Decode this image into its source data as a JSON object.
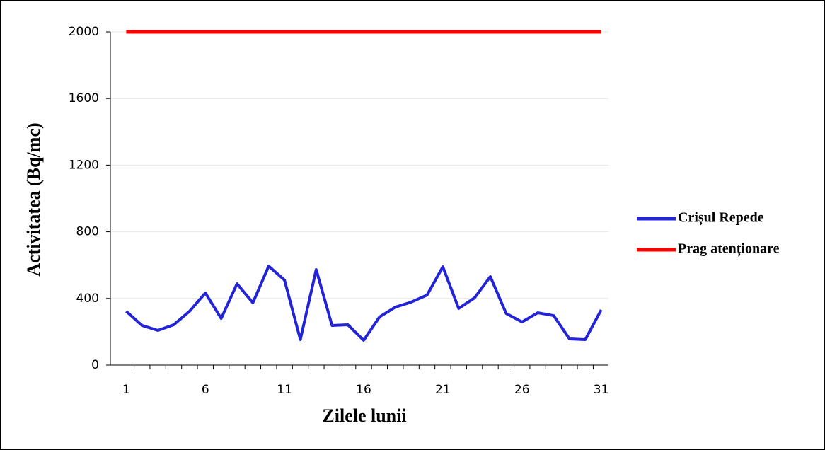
{
  "chart_data": {
    "type": "line",
    "x_label": "Zilele lunii",
    "y_label": "Activitatea (Bq/mc)",
    "x": [
      1,
      2,
      3,
      4,
      5,
      6,
      7,
      8,
      9,
      10,
      11,
      12,
      13,
      14,
      15,
      16,
      17,
      18,
      19,
      20,
      21,
      22,
      23,
      24,
      25,
      26,
      27,
      28,
      29,
      30,
      31
    ],
    "series": [
      {
        "name": "Crișul Repede",
        "color": "#2323d8",
        "values": [
          323,
          238,
          208,
          242,
          323,
          433,
          280,
          488,
          374,
          594,
          510,
          153,
          573,
          238,
          242,
          149,
          289,
          348,
          378,
          420,
          590,
          340,
          403,
          531,
          310,
          259,
          314,
          297,
          157,
          153,
          331
        ]
      },
      {
        "name": "Prag atenționare",
        "color": "#ff0000",
        "values": [
          2000,
          2000,
          2000,
          2000,
          2000,
          2000,
          2000,
          2000,
          2000,
          2000,
          2000,
          2000,
          2000,
          2000,
          2000,
          2000,
          2000,
          2000,
          2000,
          2000,
          2000,
          2000,
          2000,
          2000,
          2000,
          2000,
          2000,
          2000,
          2000,
          2000,
          2000
        ]
      }
    ],
    "xlim": [
      0,
      32
    ],
    "xticks": [
      1,
      6,
      11,
      16,
      21,
      26,
      31
    ],
    "ylim": [
      0,
      2000
    ],
    "yticks": [
      0,
      400,
      800,
      1200,
      1600,
      2000
    ],
    "grid": true,
    "legend": "right"
  }
}
